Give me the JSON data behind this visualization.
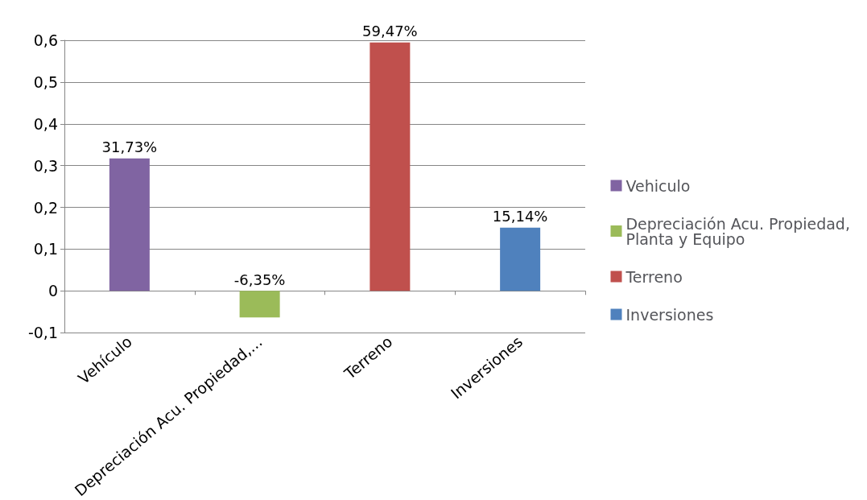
{
  "chart_data": {
    "type": "bar",
    "categories": [
      "Vehículo",
      "Depreciación Acu. Propiedad,...",
      "Terreno",
      "Inversiones"
    ],
    "series": [
      {
        "name": "Vehiculo",
        "color": "#8064a2",
        "values": [
          0.3173,
          null,
          null,
          null
        ],
        "value_labels": [
          "31,73%",
          null,
          null,
          null
        ]
      },
      {
        "name": "Depreciación Acu. Propiedad, Planta y Equipo",
        "color": "#9bbb59",
        "values": [
          null,
          -0.0635,
          null,
          null
        ],
        "value_labels": [
          null,
          "-6,35%",
          null,
          null
        ]
      },
      {
        "name": "Terreno",
        "color": "#c0504d",
        "values": [
          null,
          null,
          0.5947,
          null
        ],
        "value_labels": [
          null,
          null,
          "59,47%",
          null
        ]
      },
      {
        "name": "Inversiones",
        "color": "#4f81bd",
        "values": [
          null,
          null,
          null,
          0.1514
        ],
        "value_labels": [
          null,
          null,
          null,
          "15,14%"
        ]
      }
    ],
    "ylim": [
      -0.1,
      0.6
    ],
    "yticks": [
      {
        "value": -0.1,
        "label": "-0,1"
      },
      {
        "value": 0,
        "label": "0"
      },
      {
        "value": 0.1,
        "label": "0,1"
      },
      {
        "value": 0.2,
        "label": "0,2"
      },
      {
        "value": 0.3,
        "label": "0,3"
      },
      {
        "value": 0.4,
        "label": "0,4"
      },
      {
        "value": 0.5,
        "label": "0,5"
      },
      {
        "value": 0.6,
        "label": "0,6"
      }
    ],
    "grid": "y",
    "legend": "right"
  }
}
